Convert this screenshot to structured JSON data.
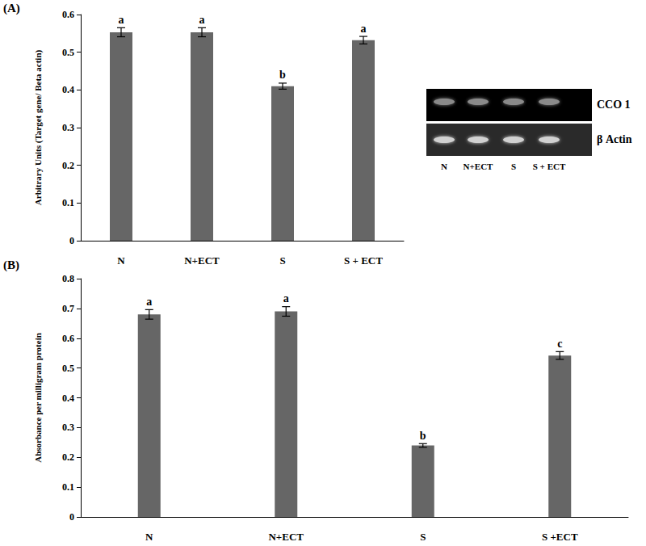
{
  "chart_data": [
    {
      "type": "bar",
      "panel_label": "(A)",
      "y_label": "Arbitrary Units (Target gene/ Beta actin)",
      "categories": [
        "N",
        "N+ECT",
        "S",
        "S + ECT"
      ],
      "values": [
        0.553,
        0.553,
        0.41,
        0.532
      ],
      "errors": [
        0.012,
        0.012,
        0.008,
        0.01
      ],
      "annotations": [
        "a",
        "a",
        "b",
        "a"
      ],
      "color": "#666666",
      "ylim": [
        0,
        0.6
      ],
      "yticks": [
        0,
        0.1,
        0.2,
        0.3,
        0.4,
        0.5,
        0.6
      ],
      "grid": false
    },
    {
      "type": "bar",
      "panel_label": "(B)",
      "y_label": "Absorbance per milligram protein",
      "categories": [
        "N",
        "N+ECT",
        "S",
        "S +ECT"
      ],
      "values": [
        0.68,
        0.69,
        0.24,
        0.542
      ],
      "errors": [
        0.016,
        0.016,
        0.006,
        0.013
      ],
      "annotations": [
        "a",
        "a",
        "b",
        "c"
      ],
      "color": "#666666",
      "ylim": [
        0,
        0.8
      ],
      "yticks": [
        0,
        0.1,
        0.2,
        0.3,
        0.4,
        0.5,
        0.6,
        0.7,
        0.8
      ],
      "grid": false
    }
  ],
  "gel": {
    "rows": [
      "CCO 1",
      "β Actin"
    ],
    "lanes": [
      "N",
      "N+ECT",
      "S",
      "S + ECT"
    ]
  }
}
